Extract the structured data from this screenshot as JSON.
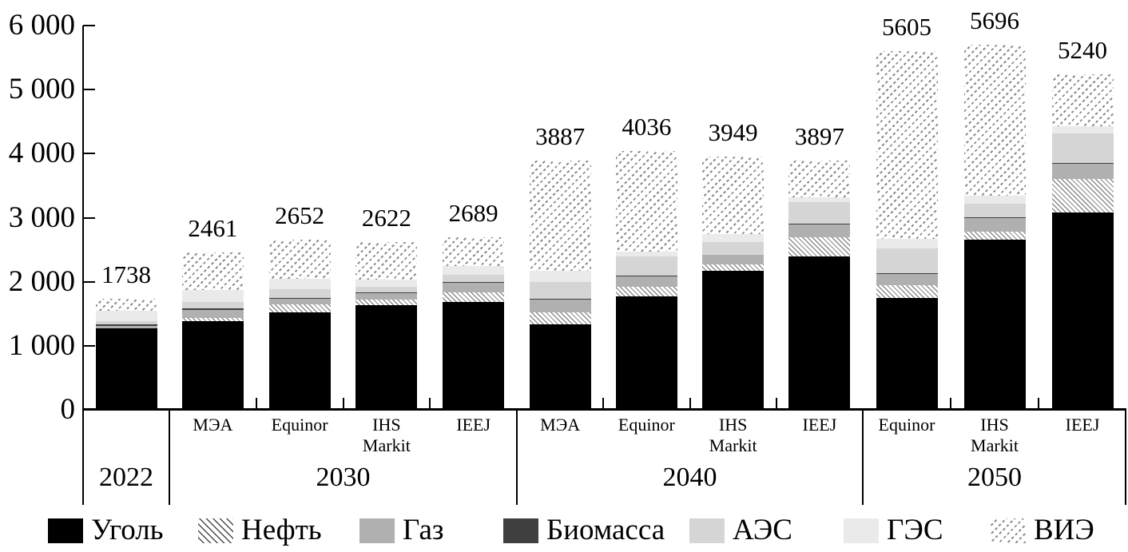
{
  "y_axis": {
    "tick_labels": [
      "0",
      "1 000",
      "2 000",
      "3 000",
      "4 000",
      "5 000",
      "6 000"
    ]
  },
  "legend": [
    {
      "name": "Уголь",
      "style": "solid-black",
      "color": "#000000"
    },
    {
      "name": "Нефть",
      "style": "diagonal-line-hatch",
      "color": "#4a4a4a"
    },
    {
      "name": "Газ",
      "style": "solid",
      "color": "#b0b0b0"
    },
    {
      "name": "Биомасса",
      "style": "solid",
      "color": "#3f3f3f"
    },
    {
      "name": "АЭС",
      "style": "solid",
      "color": "#d5d5d5"
    },
    {
      "name": "ГЭС",
      "style": "solid",
      "color": "#eaeaea"
    },
    {
      "name": "ВИЭ",
      "style": "diagonal-dot-hatch",
      "color": "#8f8f8f"
    }
  ],
  "chart_data": {
    "type": "bar",
    "stacked": true,
    "ylim": [
      0,
      6000
    ],
    "grid": false,
    "legend_position": "bottom",
    "series_names": [
      "Уголь",
      "Нефть",
      "Газ",
      "Биомасса",
      "АЭС",
      "ГЭС",
      "ВИЭ"
    ],
    "groups": [
      {
        "year": "2022",
        "bars": [
          {
            "scenario": "",
            "total": 1738,
            "segments": [
              1271,
              3,
              36,
              25,
              46,
              162,
              195
            ]
          }
        ]
      },
      {
        "year": "2030",
        "bars": [
          {
            "scenario": "МЭА",
            "total": 2461,
            "segments": [
              1380,
              60,
              125,
              15,
              105,
              180,
              596
            ]
          },
          {
            "scenario": "Equinor",
            "total": 2652,
            "segments": [
              1520,
              130,
              80,
              12,
              140,
              160,
              610
            ]
          },
          {
            "scenario": "IHS\nMarkit",
            "total": 2622,
            "segments": [
              1630,
              95,
              100,
              10,
              90,
              110,
              587
            ]
          },
          {
            "scenario": "IEEJ",
            "total": 2689,
            "segments": [
              1690,
              140,
              155,
              10,
              115,
              140,
              439
            ]
          }
        ]
      },
      {
        "year": "2040",
        "bars": [
          {
            "scenario": "МЭА",
            "total": 3887,
            "segments": [
              1340,
              180,
              205,
              15,
              250,
              180,
              1717
            ]
          },
          {
            "scenario": "Equinor",
            "total": 4036,
            "segments": [
              1775,
              150,
              155,
              10,
              305,
              80,
              1561
            ]
          },
          {
            "scenario": "IHS\nMarkit",
            "total": 3949,
            "segments": [
              2165,
              105,
              145,
              10,
              200,
              120,
              1204
            ]
          },
          {
            "scenario": "IEEJ",
            "total": 3897,
            "segments": [
              2400,
              300,
              200,
              10,
              330,
              80,
              577
            ]
          }
        ]
      },
      {
        "year": "2050",
        "bars": [
          {
            "scenario": "Equinor",
            "total": 5605,
            "segments": [
              1745,
              205,
              175,
              10,
              390,
              140,
              2940
            ]
          },
          {
            "scenario": "IHS\nMarkit",
            "total": 5696,
            "segments": [
              2655,
              125,
              215,
              10,
              215,
              120,
              2356
            ]
          },
          {
            "scenario": "IEEJ",
            "total": 5240,
            "segments": [
              3085,
              520,
              240,
              10,
              455,
              115,
              815
            ]
          }
        ]
      }
    ]
  }
}
